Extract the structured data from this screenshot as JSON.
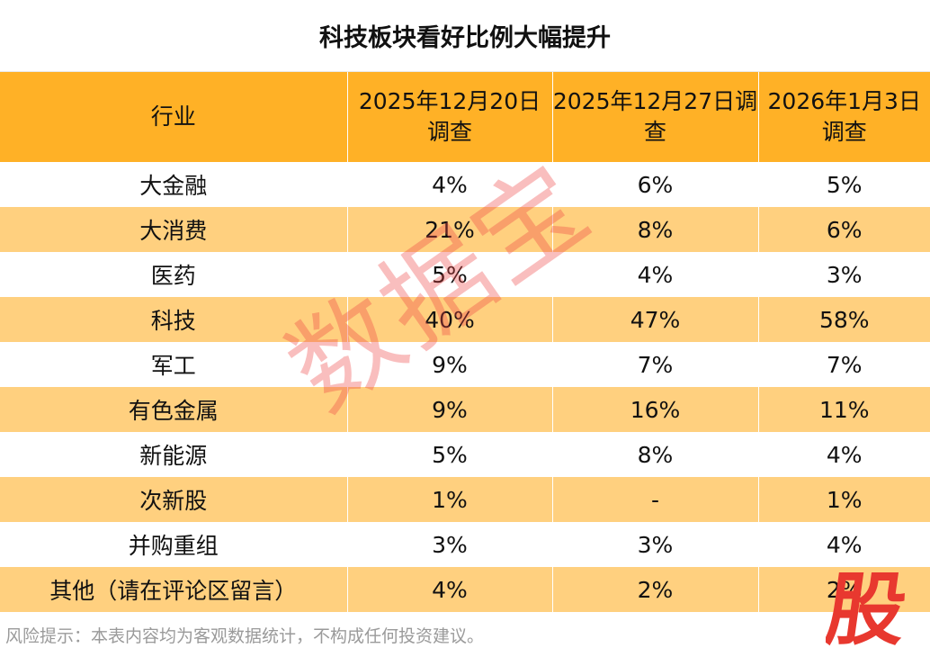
{
  "chart_data": {
    "type": "table",
    "title": "科技板块看好比例大幅提升",
    "columns": [
      "行业",
      "2025年12月20日调查",
      "2025年12月27日调查",
      "2026年1月3日调查"
    ],
    "rows": [
      [
        "大金融",
        "4%",
        "6%",
        "5%"
      ],
      [
        "大消费",
        "21%",
        "8%",
        "6%"
      ],
      [
        "医药",
        "5%",
        "4%",
        "3%"
      ],
      [
        "科技",
        "40%",
        "47%",
        "58%"
      ],
      [
        "军工",
        "9%",
        "7%",
        "7%"
      ],
      [
        "有色金属",
        "9%",
        "16%",
        "11%"
      ],
      [
        "新能源",
        "5%",
        "8%",
        "4%"
      ],
      [
        "次新股",
        "1%",
        "-",
        "1%"
      ],
      [
        "并购重组",
        "3%",
        "3%",
        "4%"
      ],
      [
        "其他（请在评论区留言）",
        "4%",
        "2%",
        "2%"
      ]
    ]
  },
  "footer_note": "风险提示：本表内容均为客观数据统计，不构成任何投资建议。",
  "watermark_text": "数据宝",
  "logo_text": "股",
  "colors": {
    "header_bg": "#ffb126",
    "stripe_bg": "#ffd07f",
    "watermark": "#ee4646",
    "logo": "#e8382f"
  }
}
